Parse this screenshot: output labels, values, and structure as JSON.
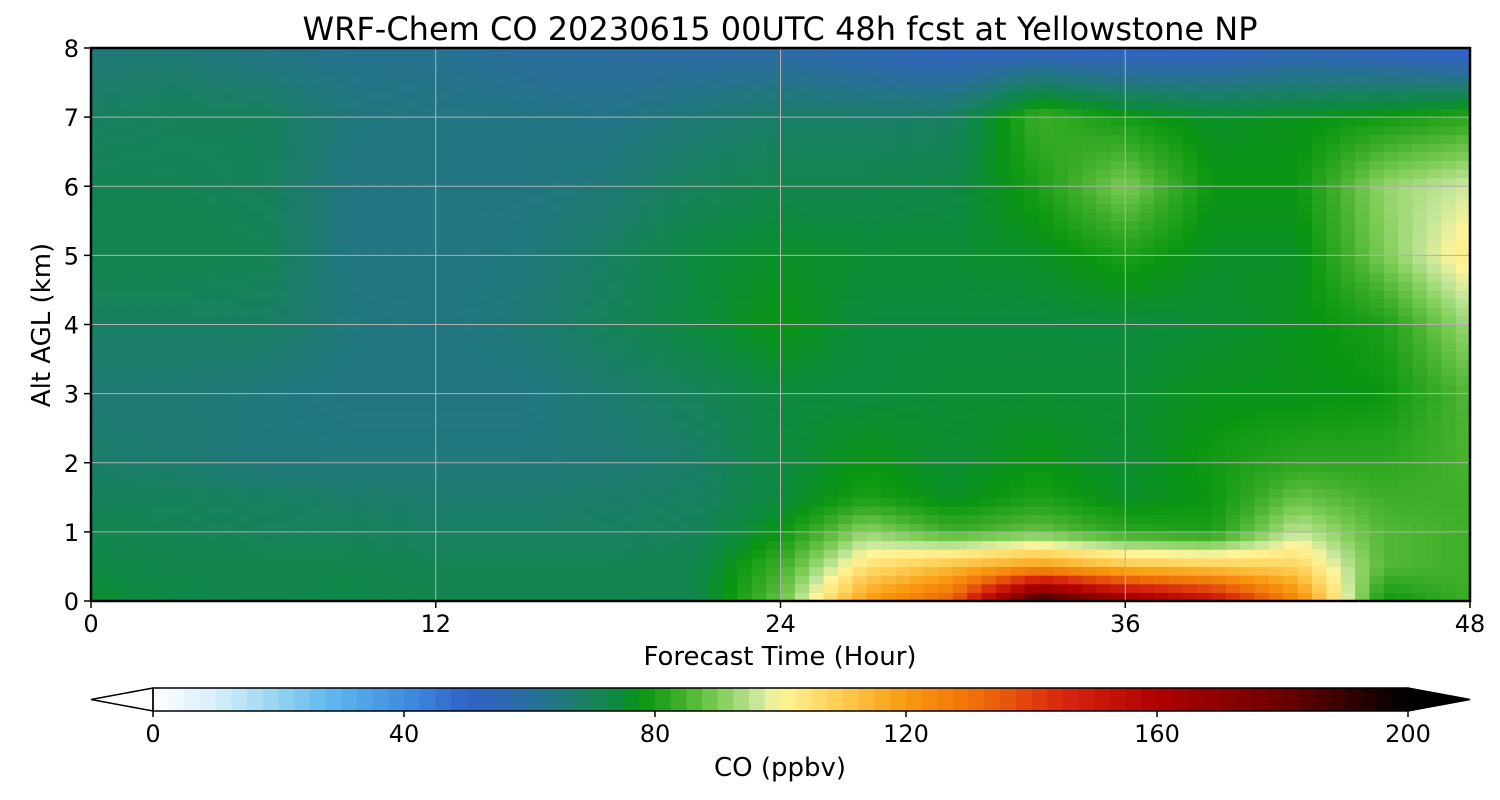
{
  "chart_data": {
    "type": "heatmap",
    "title": "WRF-Chem CO  20230615 00UTC 48h fcst at Yellowstone NP",
    "xlabel": "Forecast Time (Hour)",
    "ylabel": "Alt AGL (km)",
    "xlim": [
      0,
      48
    ],
    "ylim": [
      0,
      8
    ],
    "xticks": [
      "0",
      "12",
      "24",
      "36",
      "48"
    ],
    "yticks": [
      "0",
      "1",
      "2",
      "3",
      "4",
      "5",
      "6",
      "7",
      "8"
    ],
    "grid": true,
    "x": [
      0,
      3,
      6,
      9,
      12,
      15,
      18,
      21,
      24,
      27,
      30,
      33,
      36,
      39,
      42,
      45,
      48
    ],
    "y": [
      0,
      0.5,
      1,
      1.5,
      2,
      3,
      4,
      5,
      6,
      7,
      8
    ],
    "z": [
      [
        76,
        73,
        72,
        73,
        72,
        72,
        72,
        72,
        88,
        120,
        135,
        195,
        170,
        155,
        125,
        78,
        84
      ],
      [
        73,
        72,
        72,
        72,
        71,
        71,
        71,
        72,
        84,
        105,
        113,
        120,
        112,
        110,
        108,
        86,
        84
      ],
      [
        72,
        71,
        70,
        70,
        69,
        69,
        69,
        70,
        78,
        92,
        84,
        88,
        82,
        80,
        96,
        86,
        84
      ],
      [
        70,
        70,
        69,
        68,
        67,
        67,
        68,
        69,
        74,
        80,
        76,
        80,
        76,
        78,
        88,
        84,
        84
      ],
      [
        68,
        67,
        65,
        65,
        65,
        65,
        66,
        68,
        74,
        78,
        75,
        78,
        75,
        79,
        82,
        82,
        85
      ],
      [
        66,
        66,
        65,
        64,
        64,
        64,
        67,
        70,
        74,
        74,
        75,
        75,
        75,
        77,
        77,
        78,
        86
      ],
      [
        69,
        69,
        69,
        65,
        64,
        66,
        70,
        74,
        78,
        74,
        74,
        74,
        74,
        75,
        77,
        80,
        93
      ],
      [
        72,
        72,
        71,
        64,
        64,
        65,
        69,
        74,
        76,
        75,
        75,
        76,
        80,
        76,
        76,
        90,
        103
      ],
      [
        71,
        71,
        70,
        64,
        64,
        64,
        66,
        70,
        72,
        72,
        73,
        80,
        90,
        78,
        78,
        92,
        97
      ],
      [
        69,
        70,
        70,
        65,
        64,
        64,
        63,
        66,
        68,
        68,
        69,
        84,
        79,
        76,
        77,
        79,
        82
      ],
      [
        66,
        66,
        63,
        62,
        62,
        59,
        59,
        58,
        58,
        55,
        52,
        52,
        50,
        51,
        54,
        52,
        48
      ]
    ],
    "colorbar": {
      "label": "CO  (ppbv)",
      "min": 0,
      "max": 200,
      "ticks": [
        "0",
        "40",
        "80",
        "120",
        "160",
        "200"
      ],
      "extend": "both"
    }
  }
}
